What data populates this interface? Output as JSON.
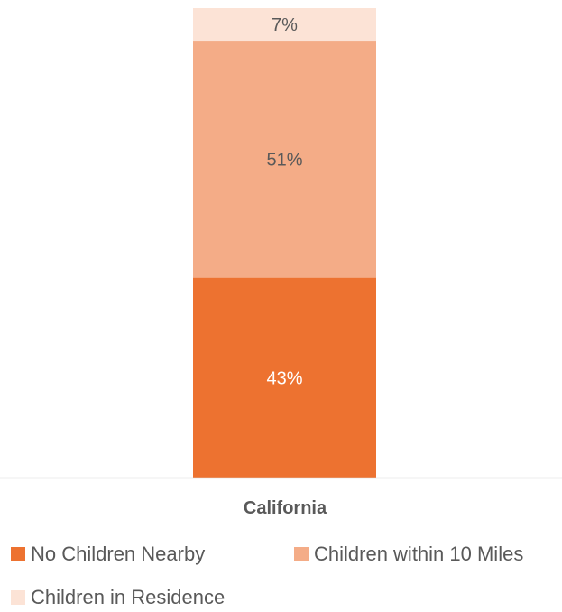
{
  "chart_data": {
    "type": "bar",
    "stacked": true,
    "orientation": "vertical",
    "title": "",
    "xlabel": "",
    "ylabel": "",
    "ylim": [
      0,
      101
    ],
    "grid": false,
    "legend_position": "bottom",
    "categories": [
      "California"
    ],
    "series": [
      {
        "name": "No Children Nearby",
        "values": [
          43
        ],
        "labels": [
          "43%"
        ],
        "color": "#ED7230",
        "label_color": "#FFFFFF"
      },
      {
        "name": "Children within 10 Miles",
        "values": [
          51
        ],
        "labels": [
          "51%"
        ],
        "color": "#F4AC87",
        "label_color": "#595959"
      },
      {
        "name": "Children in Residence",
        "values": [
          7
        ],
        "labels": [
          "7%"
        ],
        "color": "#FCE3D6",
        "label_color": "#595959"
      }
    ]
  }
}
